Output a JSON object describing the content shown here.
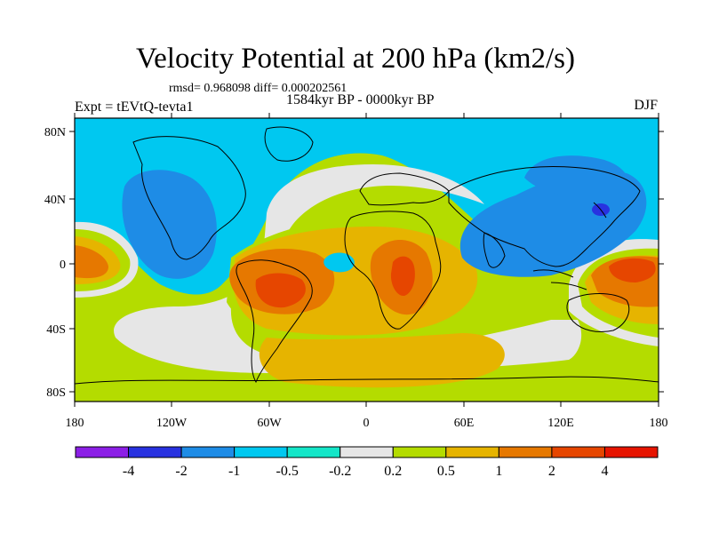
{
  "title": "Velocity Potential at 200 hPa (km2/s)",
  "stats": "rmsd= 0.968098 diff= 0.000202561",
  "period": "1584kyr BP - 0000kyr BP",
  "experiment": "Expt = tEVtQ-tevta1",
  "season": "DJF",
  "lat_labels": [
    "80N",
    "40N",
    "0",
    "40S",
    "80S"
  ],
  "lon_labels": [
    "180",
    "120W",
    "60W",
    "0",
    "60E",
    "120E",
    "180"
  ],
  "colorbar": {
    "labels": [
      "-4",
      "-2",
      "-1",
      "-0.5",
      "-0.2",
      "0.2",
      "0.5",
      "1",
      "2",
      "4"
    ],
    "colors": [
      "#8c1fe6",
      "#2832e0",
      "#1e8ce6",
      "#00c8f0",
      "#14e6c8",
      "#e6e6e6",
      "#b4dc00",
      "#e6b400",
      "#e67800",
      "#e64600",
      "#e61400"
    ]
  },
  "palette": {
    "blue": "#1e8ce6",
    "dark_blue": "#2832e0",
    "cyan": "#00c8f0",
    "teal": "#14e6c8",
    "gray": "#e6e6e6",
    "yellow_green": "#b4dc00",
    "gold": "#e6b400",
    "orange": "#e67800",
    "red_orange": "#e64600"
  }
}
